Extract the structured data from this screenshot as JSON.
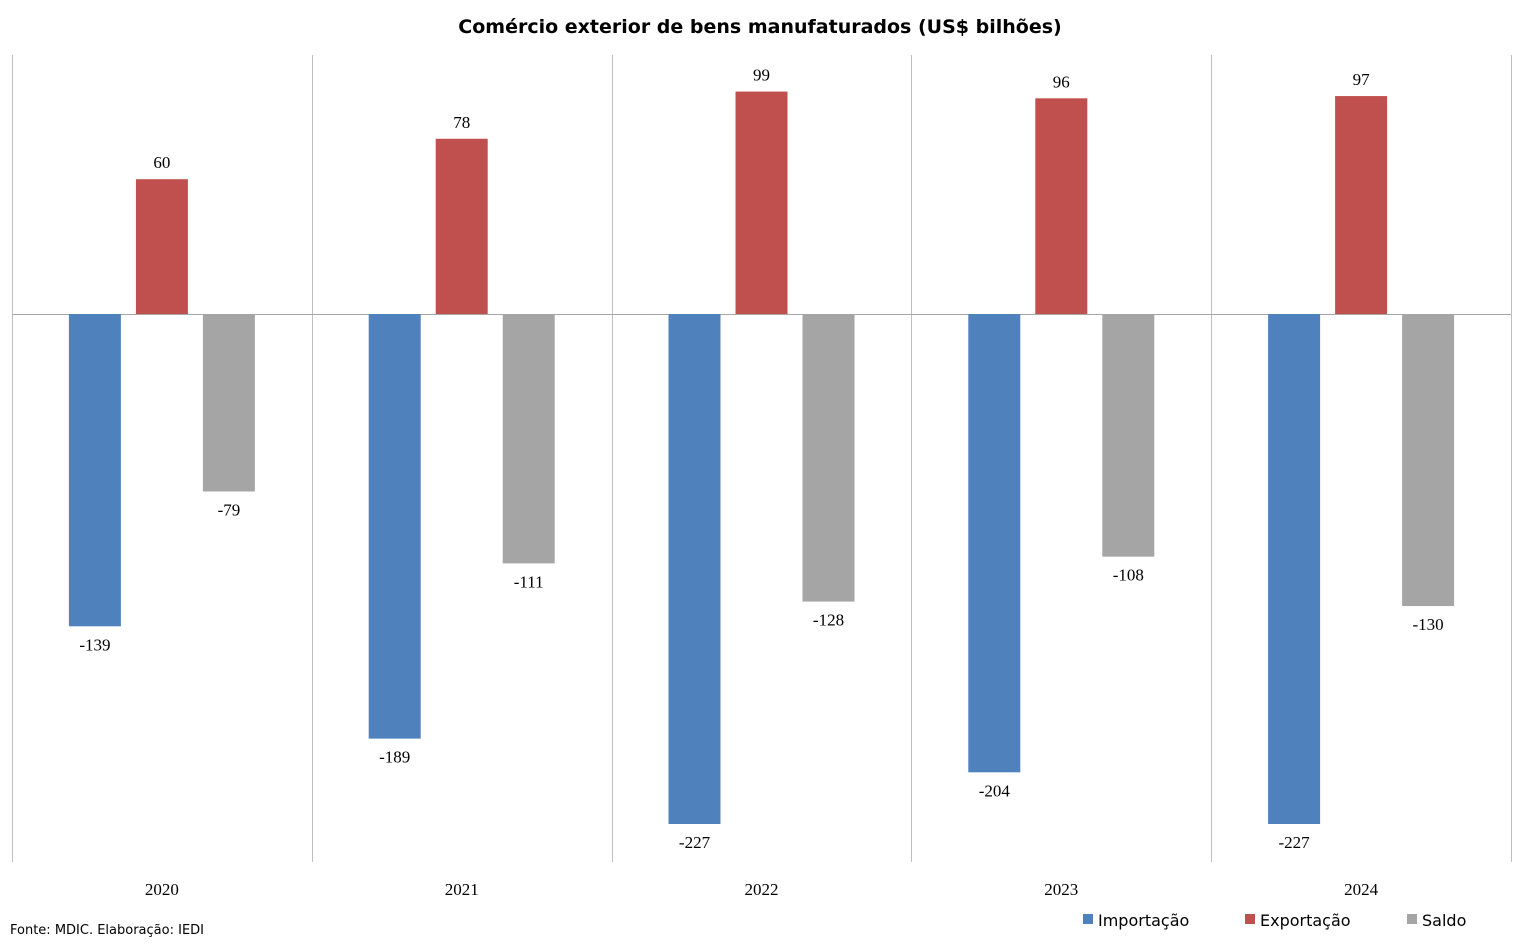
{
  "chart_data": {
    "type": "bar",
    "title": "Comércio exterior de bens manufaturados (US$ bilhões)",
    "categories": [
      "2020",
      "2021",
      "2022",
      "2023",
      "2024"
    ],
    "series": [
      {
        "name": "Importação",
        "color": "#4f81bd",
        "values": [
          -139,
          -189,
          -227,
          -204,
          -227
        ]
      },
      {
        "name": "Exportação",
        "color": "#c0504d",
        "values": [
          60,
          78,
          99,
          96,
          97
        ]
      },
      {
        "name": "Saldo",
        "color": "#a5a5a5",
        "values": [
          -79,
          -111,
          -128,
          -108,
          -130
        ]
      }
    ],
    "ylim": [
      -244,
      115
    ],
    "grid": "vertical category separators",
    "legend": "bottom-right",
    "source": "Fonte: MDIC. Elaboração: IEDI"
  }
}
